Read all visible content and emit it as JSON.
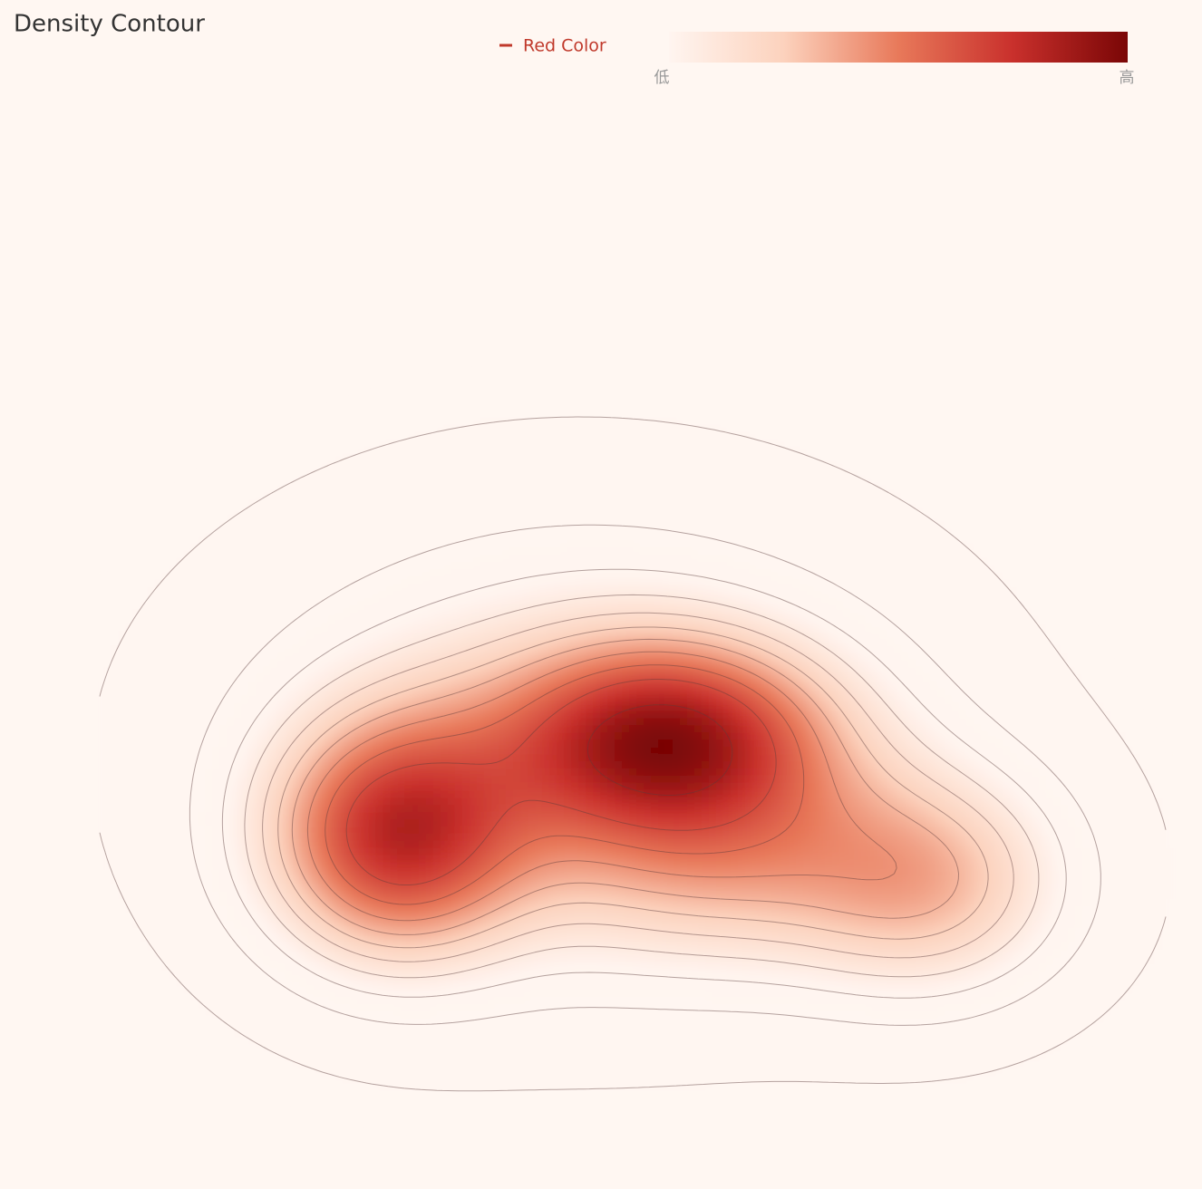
{
  "chart_data": {
    "type": "density_contour",
    "title": "Density Contour",
    "legend": {
      "name": "Red Color",
      "color": "#c0392b"
    },
    "visual_map": {
      "text": [
        "低",
        "高"
      ],
      "colors": [
        "#fff5f0",
        "#fcd2bd",
        "#e8795a",
        "#c9302c",
        "#7a0606"
      ]
    },
    "xlim": [
      0,
      100
    ],
    "ylim": [
      0,
      100
    ],
    "components": [
      {
        "x": 27.9,
        "y": 34.1,
        "sx": 8.2,
        "sy": 8.5,
        "weight": 1.0
      },
      {
        "x": 53.2,
        "y": 44.3,
        "sx": 10.5,
        "sy": 6.8,
        "weight": 1.0
      },
      {
        "x": 77.5,
        "y": 29.5,
        "sx": 9.0,
        "sy": 8.0,
        "weight": 0.55
      },
      {
        "x": 45.0,
        "y": 43.0,
        "sx": 20.0,
        "sy": 15.0,
        "weight": 0.45
      },
      {
        "x": 58.3,
        "y": 31.5,
        "sx": 12.0,
        "sy": 7.5,
        "weight": 0.4
      }
    ],
    "levels": [
      0.025,
      0.1,
      0.17,
      0.24,
      0.31,
      0.38,
      0.45,
      0.53,
      0.62,
      0.72,
      0.88
    ]
  }
}
